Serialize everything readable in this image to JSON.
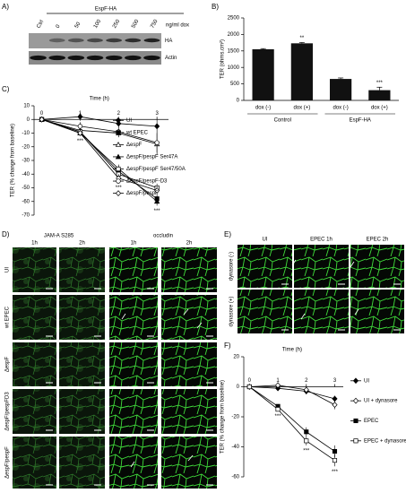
{
  "panels": {
    "A": {
      "label": "A)",
      "header": "EspF-HA",
      "lanes": [
        "Ctrl",
        "0",
        "50",
        "100",
        "250",
        "500",
        "750"
      ],
      "unit": "ng/ml dox",
      "blots": [
        "HA",
        "Actin"
      ]
    },
    "D": {
      "label": "D)",
      "stains": [
        "JAM-A S285",
        "occludin"
      ],
      "times": [
        "1h",
        "2h",
        "1h",
        "2h"
      ],
      "rows": [
        "UI",
        "wt EPEC",
        "ΔespF",
        "ΔespF/pespFD3",
        "ΔespF/pespF"
      ]
    },
    "E": {
      "label": "E)",
      "columns": [
        "UI",
        "EPEC 1h",
        "EPEC 2h"
      ],
      "rows": [
        "dynasore (-)",
        "dynasore (+)"
      ]
    }
  },
  "chart_data": [
    {
      "type": "bar",
      "panel": "B)",
      "ylabel": "TER (ohms.cm²)",
      "categories": [
        "dox (-)",
        "dox (+)",
        "dox (-)",
        "dox (+)"
      ],
      "groups": [
        "Control",
        "EspF-HA"
      ],
      "values": [
        1550,
        1730,
        650,
        310
      ],
      "errors": [
        20,
        25,
        30,
        90
      ],
      "significance": [
        null,
        "**",
        null,
        "***"
      ],
      "color": "#111111",
      "ylim": [
        0,
        2500
      ],
      "yticks": [
        0,
        500,
        1000,
        1500,
        2000,
        2500
      ]
    },
    {
      "type": "line",
      "panel": "C)",
      "xlabel": "Time (h)",
      "ylabel": "TER (% change from baseline)",
      "x": [
        0,
        1,
        2,
        3
      ],
      "xlim": [
        -0.2,
        3.3
      ],
      "xticks": [
        0,
        1,
        2,
        3
      ],
      "ylim": [
        -70,
        10
      ],
      "yticks": [
        10,
        0,
        -10,
        -20,
        -30,
        -40,
        -50,
        -60,
        -70
      ],
      "legend": "inside right",
      "significance": [
        null,
        "***",
        "***",
        "***"
      ],
      "series": [
        {
          "name": "UI",
          "color": "#000000",
          "marker": "diamond",
          "filled": true,
          "values": [
            0,
            2,
            -3,
            -5
          ],
          "errors": [
            0,
            3,
            3,
            5
          ]
        },
        {
          "name": "wt EPEC",
          "color": "#000000",
          "marker": "square",
          "filled": true,
          "values": [
            0,
            -9,
            -38,
            -58
          ],
          "errors": [
            0,
            2,
            3,
            3
          ]
        },
        {
          "name": "ΔespF",
          "color": "#000000",
          "marker": "triangle",
          "filled": false,
          "values": [
            0,
            -8,
            -10,
            -18
          ],
          "errors": [
            0,
            3,
            3,
            8
          ]
        },
        {
          "name": "ΔespF/pespF Ser47A",
          "color": "#000000",
          "marker": "triangle",
          "filled": true,
          "values": [
            0,
            -10,
            -36,
            -60
          ],
          "errors": [
            0,
            2,
            3,
            3
          ]
        },
        {
          "name": "ΔespF/pespF Ser47/50A",
          "color": "#000000",
          "marker": "square",
          "filled": false,
          "values": [
            0,
            -9,
            -40,
            -50
          ],
          "errors": [
            0,
            2,
            3,
            3
          ]
        },
        {
          "name": "ΔespF/pespF-D3",
          "color": "#000000",
          "marker": "circle",
          "filled": false,
          "values": [
            0,
            -5,
            -9,
            -17
          ],
          "errors": [
            0,
            3,
            4,
            7
          ]
        },
        {
          "name": "ΔespF/pespF",
          "color": "#000000",
          "marker": "diamond",
          "filled": false,
          "values": [
            0,
            -10,
            -43,
            -52
          ],
          "errors": [
            0,
            2,
            3,
            3
          ]
        }
      ]
    },
    {
      "type": "line",
      "panel": "F)",
      "xlabel": "Time (h)",
      "ylabel": "TER (% change from baseline)",
      "x": [
        0,
        1,
        2,
        3
      ],
      "xlim": [
        -0.2,
        3.3
      ],
      "xticks": [
        0,
        1,
        2,
        3
      ],
      "ylim": [
        -60,
        20
      ],
      "yticks": [
        20,
        0,
        -20,
        -40,
        -60
      ],
      "legend": "outside right",
      "significance": [
        null,
        "***",
        "***",
        "***"
      ],
      "series": [
        {
          "name": "UI",
          "color": "#000000",
          "marker": "diamond",
          "filled": true,
          "values": [
            0,
            -1,
            -3,
            -8
          ],
          "errors": [
            0,
            1,
            2,
            2
          ]
        },
        {
          "name": "UI + dynasore",
          "color": "#000000",
          "marker": "diamond",
          "filled": false,
          "values": [
            0,
            1,
            -2,
            -12
          ],
          "errors": [
            0,
            2,
            3,
            3
          ]
        },
        {
          "name": "EPEC",
          "color": "#000000",
          "marker": "square",
          "filled": true,
          "values": [
            0,
            -13,
            -30,
            -43
          ],
          "errors": [
            0,
            1,
            3,
            4
          ]
        },
        {
          "name": "EPEC + dynasore",
          "color": "#000000",
          "marker": "square",
          "filled": false,
          "values": [
            0,
            -15,
            -36,
            -49
          ],
          "errors": [
            0,
            1,
            3,
            4
          ]
        }
      ]
    }
  ]
}
